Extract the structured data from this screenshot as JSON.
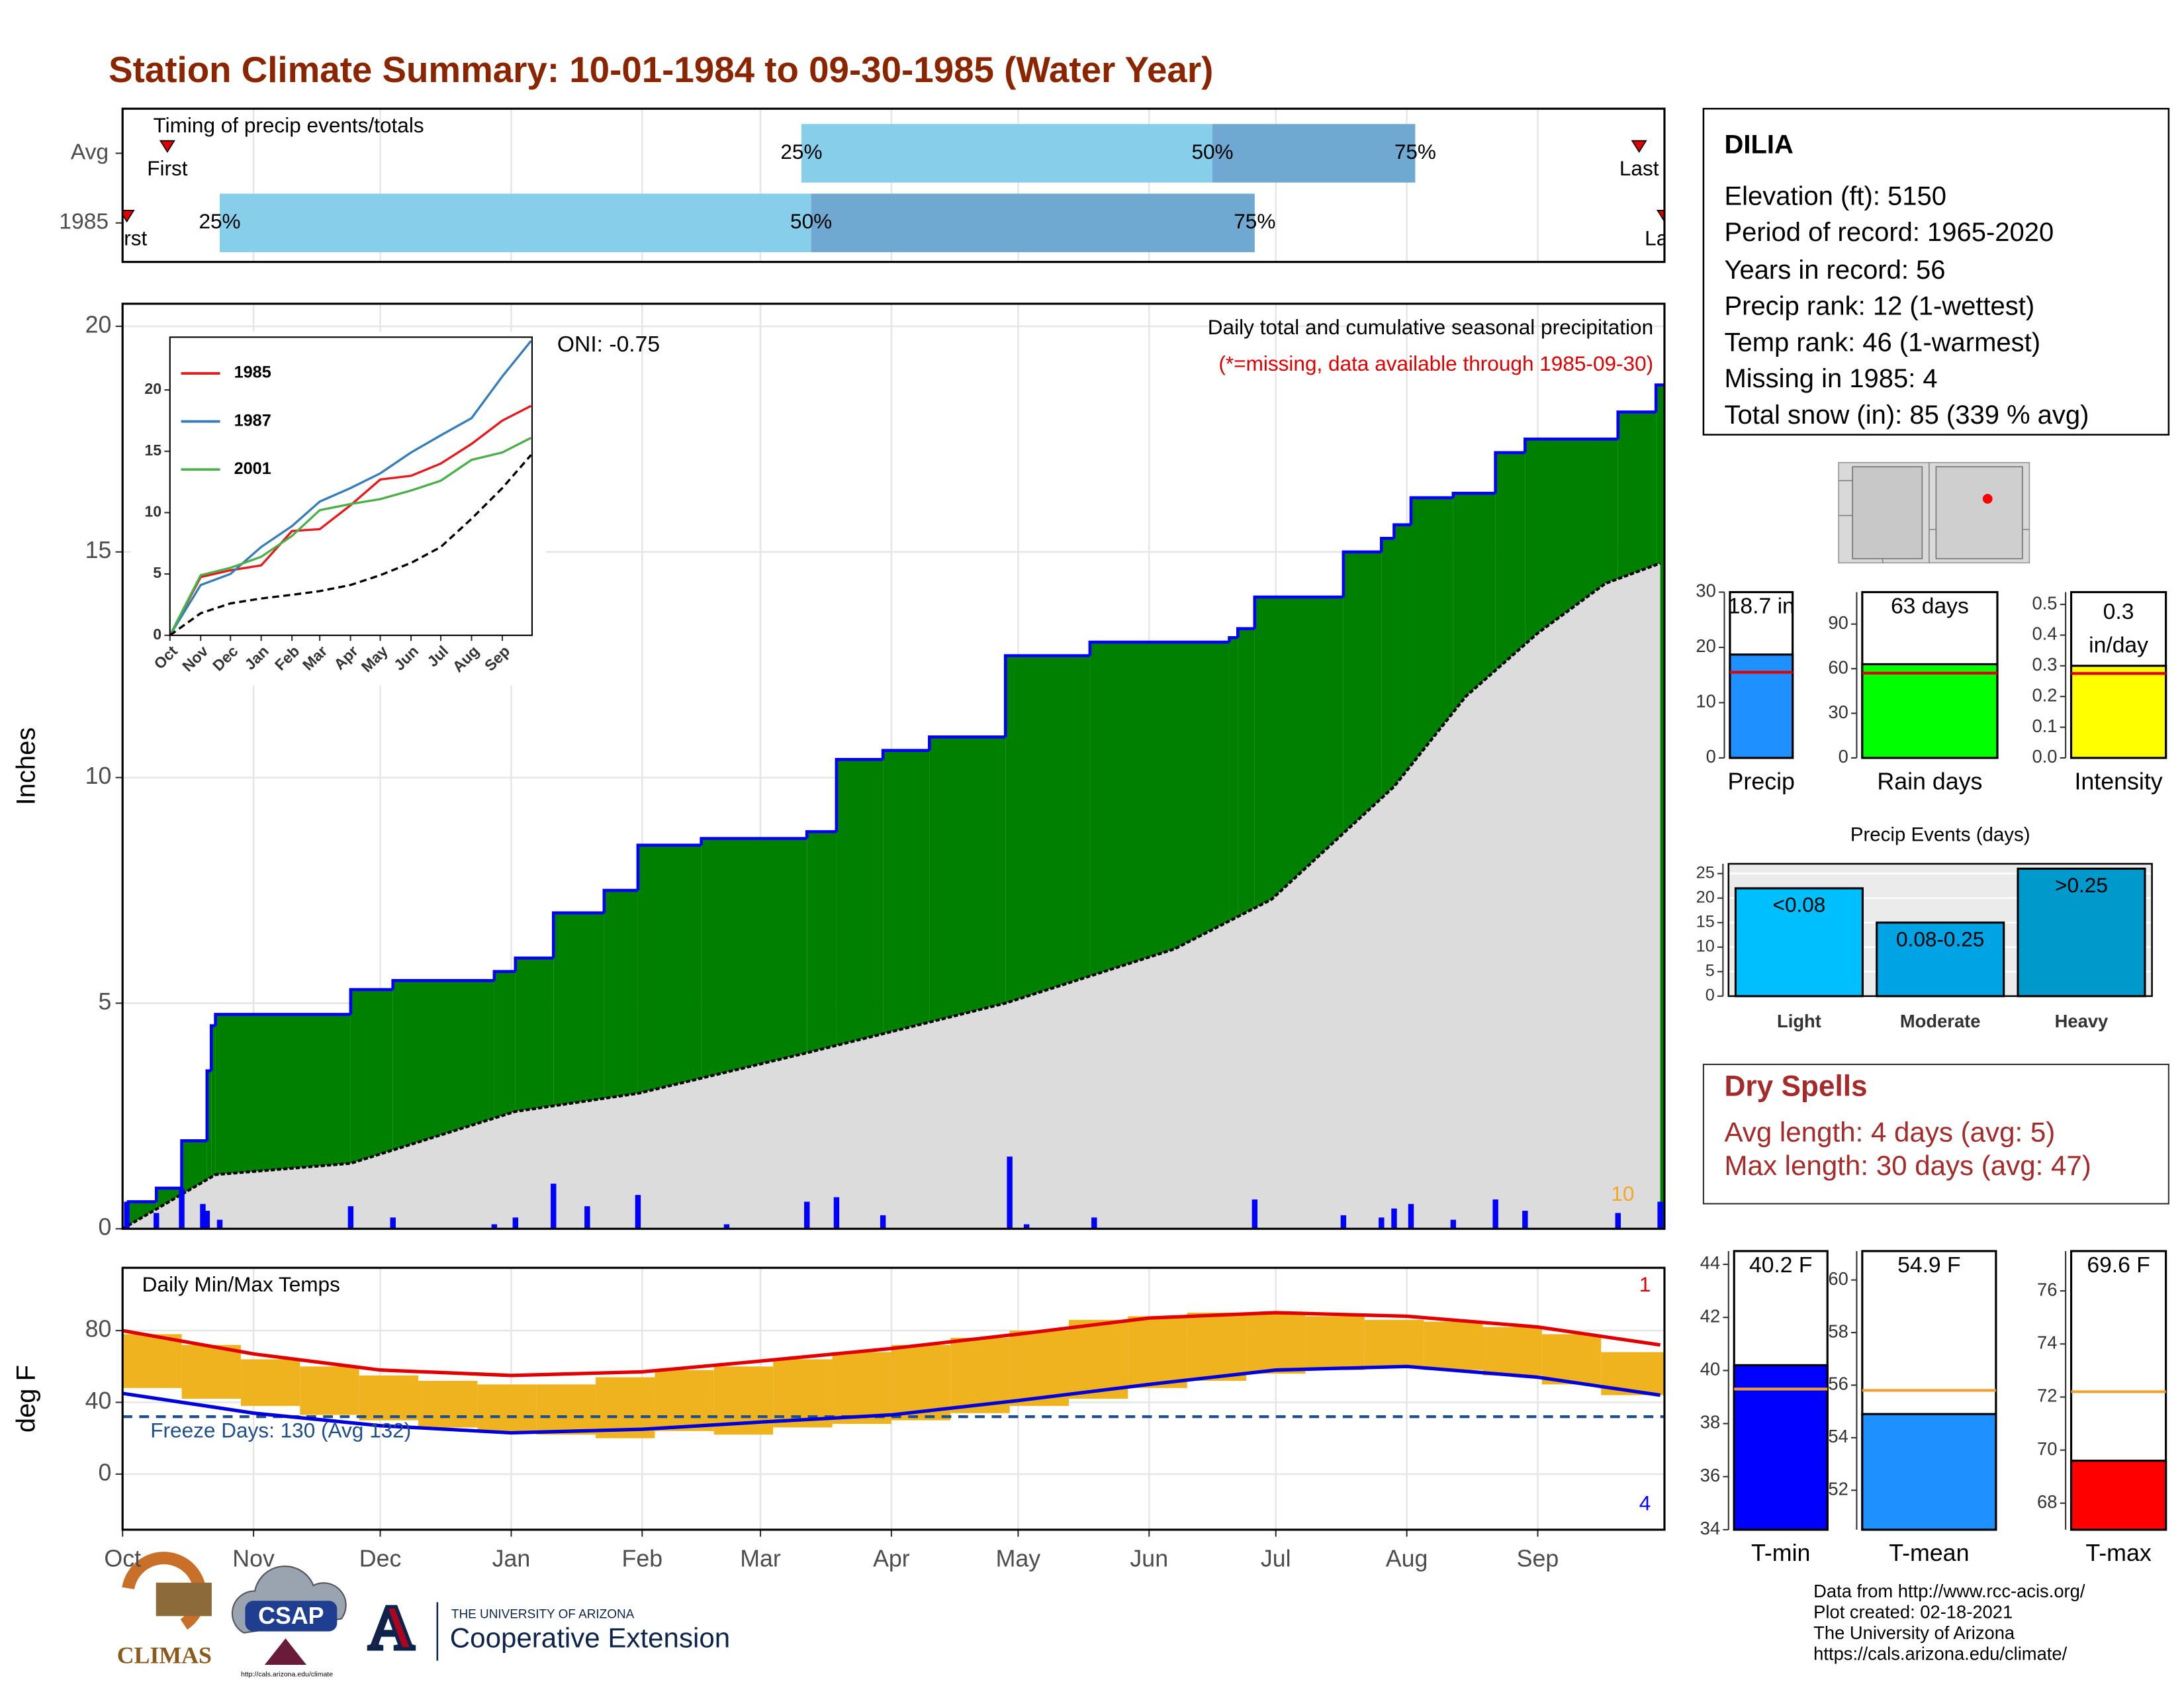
{
  "title": "Station Climate Summary: 10-01-1984 to 09-30-1985 (Water Year)",
  "station": {
    "name": "DILIA",
    "lines": [
      "Elevation (ft): 5150",
      "Period of record: 1965-2020",
      "Years in record: 56",
      "Precip rank: 12 (1-wettest)",
      "Temp rank: 46 (1-warmest)",
      "Missing in 1985: 4",
      "Total snow (in): 85 (339 % avg)"
    ]
  },
  "dry_spells": {
    "title": "Dry Spells",
    "lines": [
      "Avg length: 4 days (avg: 5)",
      "Max length: 30 days (avg: 47)"
    ]
  },
  "footer": [
    "Data from http://www.rcc-acis.org/",
    "Plot created: 02-18-2021",
    "The University of Arizona",
    "https://cals.arizona.edu/climate/"
  ],
  "logos": {
    "climas": "CLIMAS",
    "csap": "CSAP",
    "csap_url": "http://cals.arizona.edu/climate",
    "ua_letter": "A",
    "ua_name": "THE UNIVERSITY OF ARIZONA",
    "ua_unit": "Cooperative Extension"
  },
  "chart_data": [
    {
      "type": "timing",
      "title": "Timing of precip events/totals",
      "categories": [
        "Avg",
        "1985"
      ],
      "labels": [
        "First",
        "25%",
        "50%",
        "75%",
        "Last"
      ],
      "series": [
        {
          "values": [
            10.6,
            160.7,
            258,
            306,
            359
          ]
        },
        {
          "values": [
            1,
            23,
            163,
            268,
            365
          ]
        }
      ],
      "colors": [
        "#87ceeb",
        "#6fa8d0"
      ],
      "marker_color": "#e00000",
      "xlim": [
        0,
        365
      ]
    },
    {
      "type": "area",
      "title": "Daily total and cumulative seasonal precipitation",
      "subtitle": "(*=missing, data available through 1985-09-30)",
      "annotation": "ONI: -0.75",
      "note": "10",
      "ylabel": "Inches",
      "grid": true,
      "xlim": [
        0,
        365
      ],
      "ylim": [
        0,
        20.5
      ],
      "yticks": [
        0,
        5,
        10,
        15,
        20
      ],
      "series": [
        {
          "style": "step",
          "color": "#0000ff",
          "fill": "#008000",
          "x": [
            1,
            8,
            14,
            20,
            21,
            22,
            54,
            64,
            88,
            93,
            102,
            114,
            122,
            137,
            162,
            169,
            180,
            191,
            209,
            229,
            262,
            264,
            268,
            289,
            298,
            301,
            305,
            315,
            325,
            332,
            354,
            363
          ],
          "values": [
            0.6,
            0.9,
            1.95,
            3.5,
            4.5,
            4.75,
            5.3,
            5.5,
            5.7,
            6.0,
            7.0,
            7.5,
            8.5,
            8.65,
            8.8,
            10.4,
            10.6,
            10.9,
            12.7,
            13.0,
            13.1,
            13.3,
            14.0,
            15.0,
            15.3,
            15.6,
            16.2,
            16.3,
            17.2,
            17.5,
            18.1,
            18.7
          ]
        },
        {
          "style": "area",
          "color": "#000000",
          "fill": "#dcdcdc",
          "x": [
            0,
            22,
            54,
            93,
            122,
            162,
            209,
            249,
            272,
            301,
            318,
            335,
            351,
            364
          ],
          "values": [
            0,
            1.2,
            1.45,
            2.6,
            3.0,
            3.9,
            5.0,
            6.2,
            7.3,
            9.8,
            11.8,
            13.2,
            14.3,
            14.75
          ]
        },
        {
          "style": "bar",
          "color": "#0000ff",
          "x": [
            1,
            8,
            14,
            19,
            20,
            23,
            54,
            64,
            88,
            93,
            102,
            110,
            122,
            143,
            162,
            169,
            180,
            210,
            214,
            230,
            268,
            289,
            298,
            301,
            305,
            315,
            325,
            332,
            354,
            364
          ],
          "values": [
            0.6,
            0.35,
            0.9,
            0.55,
            0.4,
            0.2,
            0.5,
            0.25,
            0.1,
            0.25,
            1.0,
            0.5,
            0.75,
            0.1,
            0.6,
            0.7,
            0.3,
            1.6,
            0.1,
            0.25,
            0.65,
            0.3,
            0.25,
            0.45,
            0.55,
            0.2,
            0.65,
            0.4,
            0.35,
            0.6
          ]
        }
      ]
    },
    {
      "type": "line",
      "xlim": [
        0,
        365
      ],
      "ylim": [
        0,
        24.3
      ],
      "yticks": [
        0,
        5,
        10,
        15,
        20
      ],
      "xticks": [
        {
          "value": 0,
          "label": "Oct"
        },
        {
          "value": 31,
          "label": "Nov"
        },
        {
          "value": 61,
          "label": "Dec"
        },
        {
          "value": 92,
          "label": "Jan"
        },
        {
          "value": 123,
          "label": "Feb"
        },
        {
          "value": 151,
          "label": "Mar"
        },
        {
          "value": 182,
          "label": "Apr"
        },
        {
          "value": 212,
          "label": "May"
        },
        {
          "value": 243,
          "label": "Jun"
        },
        {
          "value": 273,
          "label": "Jul"
        },
        {
          "value": 304,
          "label": "Aug"
        },
        {
          "value": 335,
          "label": "Sep"
        }
      ],
      "x": [
        0,
        31,
        61,
        92,
        123,
        151,
        182,
        212,
        243,
        273,
        304,
        335,
        364
      ],
      "series": [
        {
          "name": "1985",
          "color": "#e41a1c",
          "values": [
            0,
            4.75,
            5.3,
            5.7,
            8.5,
            8.65,
            10.6,
            12.7,
            13.0,
            14.0,
            15.6,
            17.5,
            18.7
          ]
        },
        {
          "name": "1987",
          "color": "#377eb8",
          "values": [
            0,
            4.1,
            5.0,
            7.2,
            8.9,
            10.9,
            12.0,
            13.2,
            14.9,
            16.3,
            17.7,
            21.1,
            24.0
          ]
        },
        {
          "name": "2001",
          "color": "#4daf4a",
          "values": [
            0,
            4.9,
            5.5,
            6.4,
            8.1,
            10.2,
            10.7,
            11.1,
            11.8,
            12.6,
            14.3,
            14.9,
            16.1
          ]
        },
        {
          "color": "#000000",
          "dash": true,
          "values": [
            0,
            1.8,
            2.6,
            3.0,
            3.3,
            3.6,
            4.1,
            4.9,
            5.9,
            7.2,
            9.5,
            12.0,
            14.7
          ]
        }
      ]
    },
    {
      "type": "range",
      "title": "Daily Min/Max Temps",
      "ylabel": "deg F",
      "grid": true,
      "xlim": [
        0,
        365
      ],
      "ylim": [
        -31,
        115
      ],
      "yticks": [
        0,
        40,
        80
      ],
      "xticks": [
        {
          "value": 0,
          "label": "Oct"
        },
        {
          "value": 31,
          "label": "Nov"
        },
        {
          "value": 61,
          "label": "Dec"
        },
        {
          "value": 92,
          "label": "Jan"
        },
        {
          "value": 123,
          "label": "Feb"
        },
        {
          "value": 151,
          "label": "Mar"
        },
        {
          "value": 182,
          "label": "Apr"
        },
        {
          "value": 212,
          "label": "May"
        },
        {
          "value": 243,
          "label": "Jun"
        },
        {
          "value": 273,
          "label": "Jul"
        },
        {
          "value": 304,
          "label": "Aug"
        },
        {
          "value": 335,
          "label": "Sep"
        }
      ],
      "freeze": 32,
      "freeze_label": "Freeze Days: 130 (Avg 132)",
      "freeze_color": "#1f4e8c",
      "annotations": [
        {
          "text": "1",
          "color": "#e00000"
        },
        {
          "text": "4",
          "color": "#0000ff"
        }
      ],
      "series": [
        {
          "style": "range",
          "color": "#efb320",
          "x": [
            0,
            14,
            28,
            42,
            56,
            70,
            84,
            98,
            112,
            126,
            140,
            154,
            168,
            182,
            196,
            210,
            224,
            238,
            252,
            266,
            280,
            294,
            308,
            322,
            336,
            350
          ],
          "low": [
            48,
            42,
            38,
            33,
            30,
            26,
            24,
            22,
            20,
            24,
            22,
            26,
            28,
            30,
            34,
            38,
            42,
            48,
            52,
            56,
            58,
            60,
            58,
            55,
            50,
            44
          ],
          "high": [
            78,
            72,
            64,
            60,
            55,
            52,
            50,
            50,
            54,
            58,
            60,
            64,
            68,
            72,
            76,
            80,
            86,
            88,
            90,
            90,
            88,
            86,
            85,
            82,
            78,
            68
          ]
        },
        {
          "style": "line",
          "color": "#e00000",
          "x": [
            0,
            31,
            61,
            92,
            123,
            151,
            182,
            212,
            243,
            273,
            304,
            335,
            364
          ],
          "values": [
            80,
            67,
            58,
            55,
            57,
            63,
            70,
            78,
            87,
            90,
            88,
            82,
            72
          ]
        },
        {
          "style": "line",
          "color": "#0000dd",
          "x": [
            0,
            31,
            61,
            92,
            123,
            151,
            182,
            212,
            243,
            273,
            304,
            335,
            364
          ],
          "values": [
            45,
            34,
            27,
            23,
            25,
            29,
            33,
            41,
            50,
            58,
            60,
            54,
            44
          ]
        }
      ]
    },
    {
      "type": "bar",
      "categories": [
        "Precip"
      ],
      "values": [
        18.7
      ],
      "value_labels": [
        "18.7 in"
      ],
      "color": "#1e90ff",
      "avg": 15.5,
      "avg_color": "#e00000",
      "ylim": [
        0,
        30
      ],
      "yticks": [
        0,
        10,
        20,
        30
      ]
    },
    {
      "type": "bar",
      "categories": [
        "Rain days"
      ],
      "values": [
        63
      ],
      "value_labels": [
        "63 days"
      ],
      "color": "#00ff00",
      "avg": 57,
      "avg_color": "#e00000",
      "ylim": [
        0,
        111.5
      ],
      "yticks": [
        0,
        30,
        60,
        90
      ]
    },
    {
      "type": "bar",
      "categories": [
        "Intensity"
      ],
      "values": [
        0.3
      ],
      "value_labels": [
        "0.3 in/day"
      ],
      "color": "#ffff00",
      "avg": 0.275,
      "avg_color": "#e00000",
      "ylim": [
        0,
        0.54
      ],
      "yticks": [
        {
          "value": 0,
          "label": "0.0"
        },
        0.1,
        0.2,
        0.3,
        0.4,
        0.5
      ]
    },
    {
      "type": "bar",
      "title": "Precip Events (days)",
      "grid": true,
      "categories": [
        "Light",
        "Moderate",
        "Heavy"
      ],
      "values": [
        22,
        15,
        26
      ],
      "bin_labels": [
        "<0.08",
        "0.08-0.25",
        ">0.25"
      ],
      "colors": [
        "#00bfff",
        "#00a4e4",
        "#0099cc"
      ],
      "ylim": [
        0,
        27
      ],
      "yticks": [
        0,
        5,
        10,
        15,
        20,
        25
      ]
    },
    {
      "type": "bar",
      "categories": [
        "T-min"
      ],
      "values": [
        40.2
      ],
      "value_labels": [
        "40.2 F"
      ],
      "color": "#0000ff",
      "avg": 39.3,
      "avg_color": "#f0a030",
      "ylim": [
        34,
        44.5
      ],
      "yticks": [
        34,
        36,
        38,
        40,
        42,
        44
      ]
    },
    {
      "type": "bar",
      "categories": [
        "T-mean"
      ],
      "values": [
        54.9
      ],
      "value_labels": [
        "54.9 F"
      ],
      "color": "#1e90ff",
      "avg": 55.8,
      "avg_color": "#f0a030",
      "ylim": [
        50.5,
        61.1
      ],
      "yticks": [
        52,
        54,
        56,
        58,
        60
      ]
    },
    {
      "type": "bar",
      "categories": [
        "T-max"
      ],
      "values": [
        69.6
      ],
      "value_labels": [
        "69.6 F"
      ],
      "color": "#ff0000",
      "avg": 72.2,
      "avg_color": "#f0a030",
      "ylim": [
        67,
        77.5
      ],
      "yticks": [
        68,
        70,
        72,
        74,
        76
      ]
    }
  ]
}
